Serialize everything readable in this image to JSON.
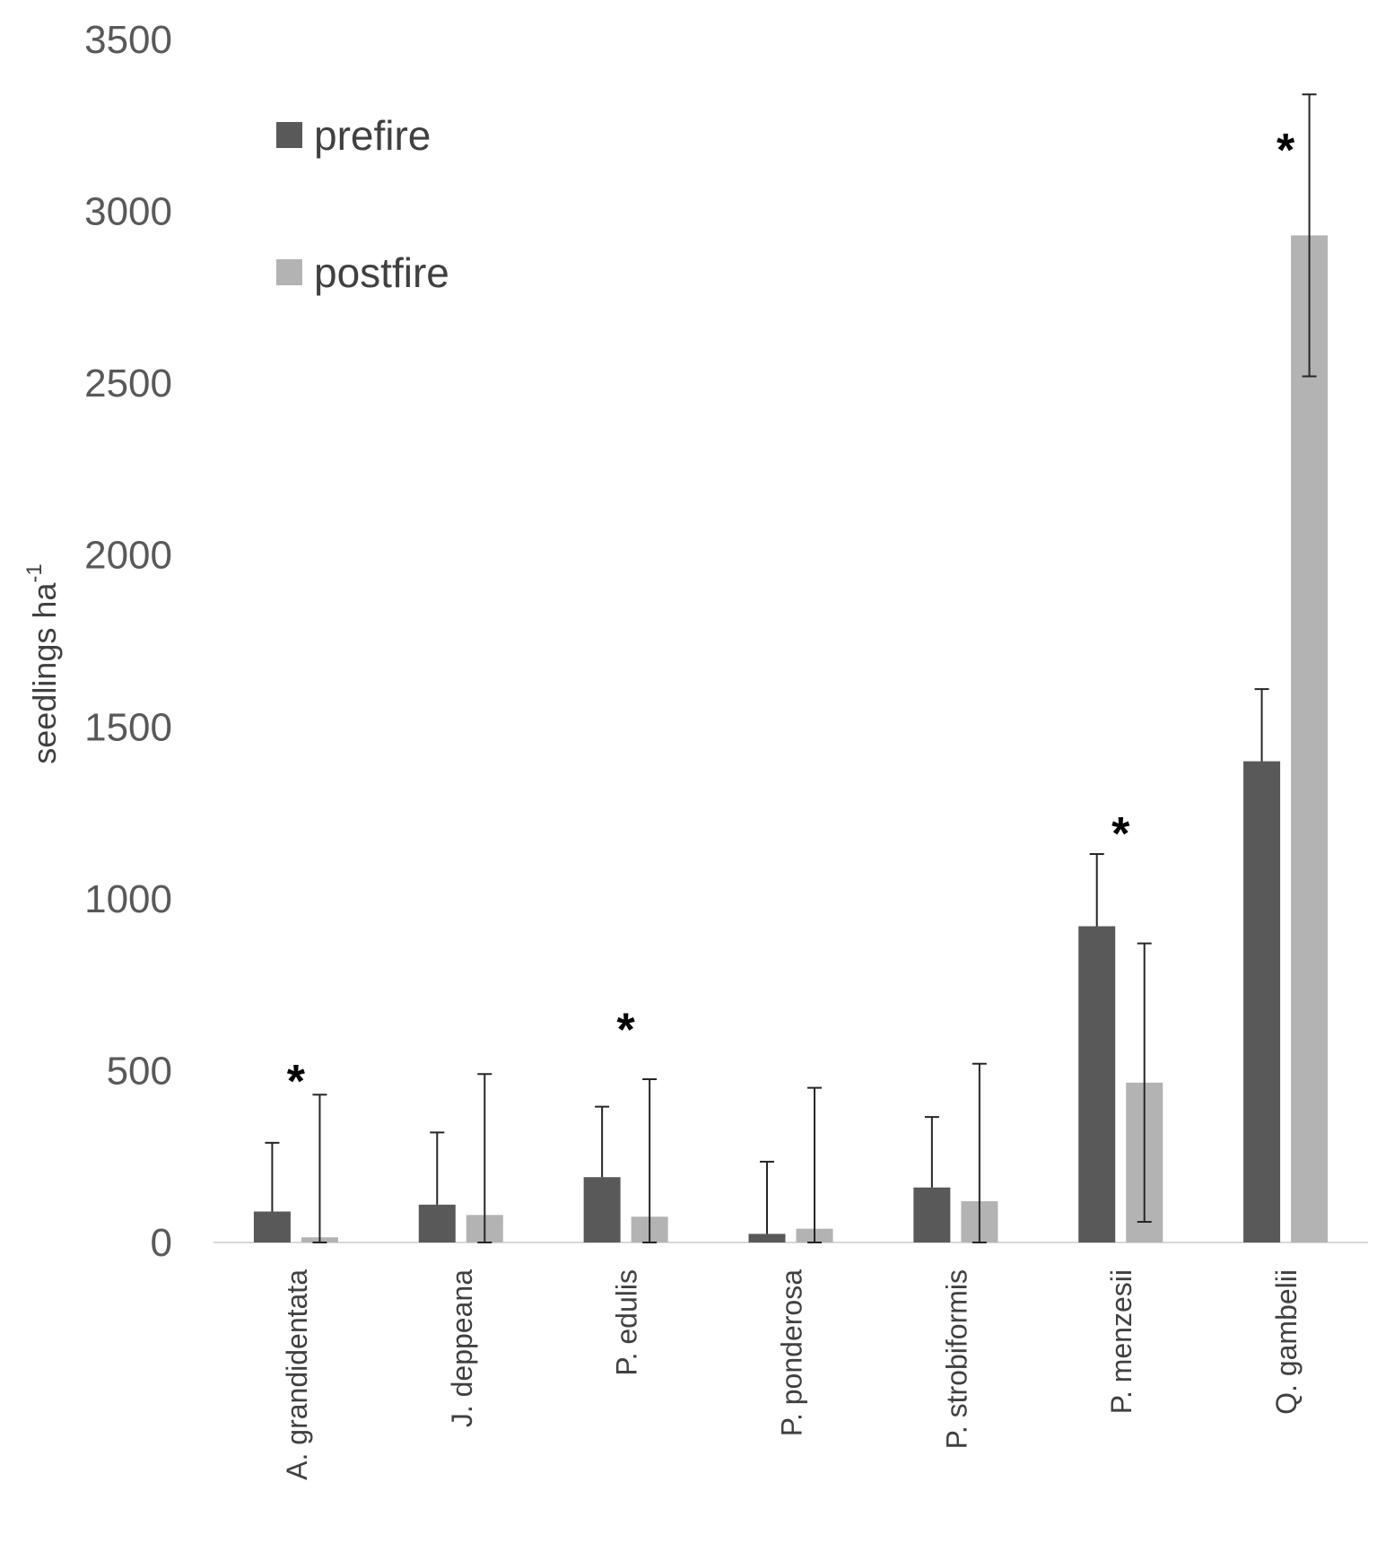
{
  "chart_data": {
    "type": "bar",
    "ylabel": "seedlings ha",
    "ylabel_superscript": "-1",
    "ylim": [
      0,
      3500
    ],
    "yticks": [
      0,
      500,
      1000,
      1500,
      2000,
      2500,
      3000,
      3500
    ],
    "grid": false,
    "legend_position": "top-left",
    "categories": [
      "A. grandidentata",
      "J. deppeana",
      "P. edulis",
      "P. ponderosa",
      "P. strobiformis",
      "P. menzesii",
      "Q. gambelii"
    ],
    "series": [
      {
        "name": "prefire",
        "color": "#595959",
        "values": [
          90,
          110,
          190,
          25,
          160,
          920,
          1400
        ],
        "error_upper": [
          290,
          320,
          395,
          235,
          365,
          1130,
          1610
        ]
      },
      {
        "name": "postfire",
        "color": "#b3b3b3",
        "values": [
          15,
          80,
          75,
          40,
          120,
          465,
          2930
        ],
        "error_upper": [
          430,
          490,
          475,
          450,
          520,
          870,
          3340
        ],
        "error_lower": [
          0,
          0,
          0,
          0,
          0,
          60,
          2520
        ]
      }
    ],
    "significance_marker": "*",
    "significance_markers": [
      {
        "category": "A. grandidentata",
        "value": 480
      },
      {
        "category": "P. edulis",
        "value": 630
      },
      {
        "category": "P. menzesii",
        "value": 1200
      },
      {
        "category": "Q. gambelii",
        "value": 3190
      }
    ]
  }
}
